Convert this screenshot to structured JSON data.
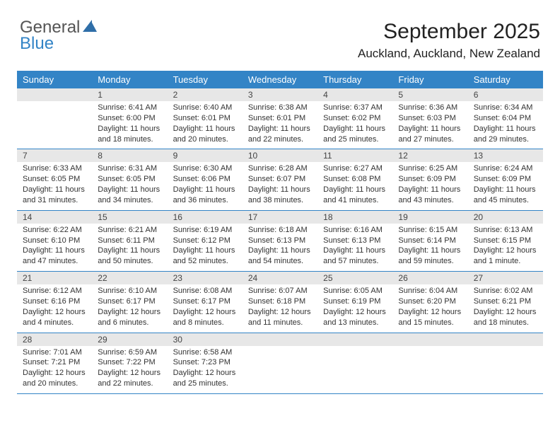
{
  "logo": {
    "word1": "General",
    "word2": "Blue"
  },
  "title": "September 2025",
  "location": "Auckland, Auckland, New Zealand",
  "colors": {
    "header_bg": "#3384c6",
    "header_text": "#ffffff",
    "daynum_bg": "#e7e7e7",
    "text": "#333333",
    "border": "#3384c6"
  },
  "dow": [
    "Sunday",
    "Monday",
    "Tuesday",
    "Wednesday",
    "Thursday",
    "Friday",
    "Saturday"
  ],
  "weeks": [
    [
      {
        "n": "",
        "sunrise": "",
        "sunset": "",
        "daylight": ""
      },
      {
        "n": "1",
        "sunrise": "Sunrise: 6:41 AM",
        "sunset": "Sunset: 6:00 PM",
        "daylight": "Daylight: 11 hours and 18 minutes."
      },
      {
        "n": "2",
        "sunrise": "Sunrise: 6:40 AM",
        "sunset": "Sunset: 6:01 PM",
        "daylight": "Daylight: 11 hours and 20 minutes."
      },
      {
        "n": "3",
        "sunrise": "Sunrise: 6:38 AM",
        "sunset": "Sunset: 6:01 PM",
        "daylight": "Daylight: 11 hours and 22 minutes."
      },
      {
        "n": "4",
        "sunrise": "Sunrise: 6:37 AM",
        "sunset": "Sunset: 6:02 PM",
        "daylight": "Daylight: 11 hours and 25 minutes."
      },
      {
        "n": "5",
        "sunrise": "Sunrise: 6:36 AM",
        "sunset": "Sunset: 6:03 PM",
        "daylight": "Daylight: 11 hours and 27 minutes."
      },
      {
        "n": "6",
        "sunrise": "Sunrise: 6:34 AM",
        "sunset": "Sunset: 6:04 PM",
        "daylight": "Daylight: 11 hours and 29 minutes."
      }
    ],
    [
      {
        "n": "7",
        "sunrise": "Sunrise: 6:33 AM",
        "sunset": "Sunset: 6:05 PM",
        "daylight": "Daylight: 11 hours and 31 minutes."
      },
      {
        "n": "8",
        "sunrise": "Sunrise: 6:31 AM",
        "sunset": "Sunset: 6:05 PM",
        "daylight": "Daylight: 11 hours and 34 minutes."
      },
      {
        "n": "9",
        "sunrise": "Sunrise: 6:30 AM",
        "sunset": "Sunset: 6:06 PM",
        "daylight": "Daylight: 11 hours and 36 minutes."
      },
      {
        "n": "10",
        "sunrise": "Sunrise: 6:28 AM",
        "sunset": "Sunset: 6:07 PM",
        "daylight": "Daylight: 11 hours and 38 minutes."
      },
      {
        "n": "11",
        "sunrise": "Sunrise: 6:27 AM",
        "sunset": "Sunset: 6:08 PM",
        "daylight": "Daylight: 11 hours and 41 minutes."
      },
      {
        "n": "12",
        "sunrise": "Sunrise: 6:25 AM",
        "sunset": "Sunset: 6:09 PM",
        "daylight": "Daylight: 11 hours and 43 minutes."
      },
      {
        "n": "13",
        "sunrise": "Sunrise: 6:24 AM",
        "sunset": "Sunset: 6:09 PM",
        "daylight": "Daylight: 11 hours and 45 minutes."
      }
    ],
    [
      {
        "n": "14",
        "sunrise": "Sunrise: 6:22 AM",
        "sunset": "Sunset: 6:10 PM",
        "daylight": "Daylight: 11 hours and 47 minutes."
      },
      {
        "n": "15",
        "sunrise": "Sunrise: 6:21 AM",
        "sunset": "Sunset: 6:11 PM",
        "daylight": "Daylight: 11 hours and 50 minutes."
      },
      {
        "n": "16",
        "sunrise": "Sunrise: 6:19 AM",
        "sunset": "Sunset: 6:12 PM",
        "daylight": "Daylight: 11 hours and 52 minutes."
      },
      {
        "n": "17",
        "sunrise": "Sunrise: 6:18 AM",
        "sunset": "Sunset: 6:13 PM",
        "daylight": "Daylight: 11 hours and 54 minutes."
      },
      {
        "n": "18",
        "sunrise": "Sunrise: 6:16 AM",
        "sunset": "Sunset: 6:13 PM",
        "daylight": "Daylight: 11 hours and 57 minutes."
      },
      {
        "n": "19",
        "sunrise": "Sunrise: 6:15 AM",
        "sunset": "Sunset: 6:14 PM",
        "daylight": "Daylight: 11 hours and 59 minutes."
      },
      {
        "n": "20",
        "sunrise": "Sunrise: 6:13 AM",
        "sunset": "Sunset: 6:15 PM",
        "daylight": "Daylight: 12 hours and 1 minute."
      }
    ],
    [
      {
        "n": "21",
        "sunrise": "Sunrise: 6:12 AM",
        "sunset": "Sunset: 6:16 PM",
        "daylight": "Daylight: 12 hours and 4 minutes."
      },
      {
        "n": "22",
        "sunrise": "Sunrise: 6:10 AM",
        "sunset": "Sunset: 6:17 PM",
        "daylight": "Daylight: 12 hours and 6 minutes."
      },
      {
        "n": "23",
        "sunrise": "Sunrise: 6:08 AM",
        "sunset": "Sunset: 6:17 PM",
        "daylight": "Daylight: 12 hours and 8 minutes."
      },
      {
        "n": "24",
        "sunrise": "Sunrise: 6:07 AM",
        "sunset": "Sunset: 6:18 PM",
        "daylight": "Daylight: 12 hours and 11 minutes."
      },
      {
        "n": "25",
        "sunrise": "Sunrise: 6:05 AM",
        "sunset": "Sunset: 6:19 PM",
        "daylight": "Daylight: 12 hours and 13 minutes."
      },
      {
        "n": "26",
        "sunrise": "Sunrise: 6:04 AM",
        "sunset": "Sunset: 6:20 PM",
        "daylight": "Daylight: 12 hours and 15 minutes."
      },
      {
        "n": "27",
        "sunrise": "Sunrise: 6:02 AM",
        "sunset": "Sunset: 6:21 PM",
        "daylight": "Daylight: 12 hours and 18 minutes."
      }
    ],
    [
      {
        "n": "28",
        "sunrise": "Sunrise: 7:01 AM",
        "sunset": "Sunset: 7:21 PM",
        "daylight": "Daylight: 12 hours and 20 minutes."
      },
      {
        "n": "29",
        "sunrise": "Sunrise: 6:59 AM",
        "sunset": "Sunset: 7:22 PM",
        "daylight": "Daylight: 12 hours and 22 minutes."
      },
      {
        "n": "30",
        "sunrise": "Sunrise: 6:58 AM",
        "sunset": "Sunset: 7:23 PM",
        "daylight": "Daylight: 12 hours and 25 minutes."
      },
      {
        "n": "",
        "sunrise": "",
        "sunset": "",
        "daylight": ""
      },
      {
        "n": "",
        "sunrise": "",
        "sunset": "",
        "daylight": ""
      },
      {
        "n": "",
        "sunrise": "",
        "sunset": "",
        "daylight": ""
      },
      {
        "n": "",
        "sunrise": "",
        "sunset": "",
        "daylight": ""
      }
    ]
  ]
}
